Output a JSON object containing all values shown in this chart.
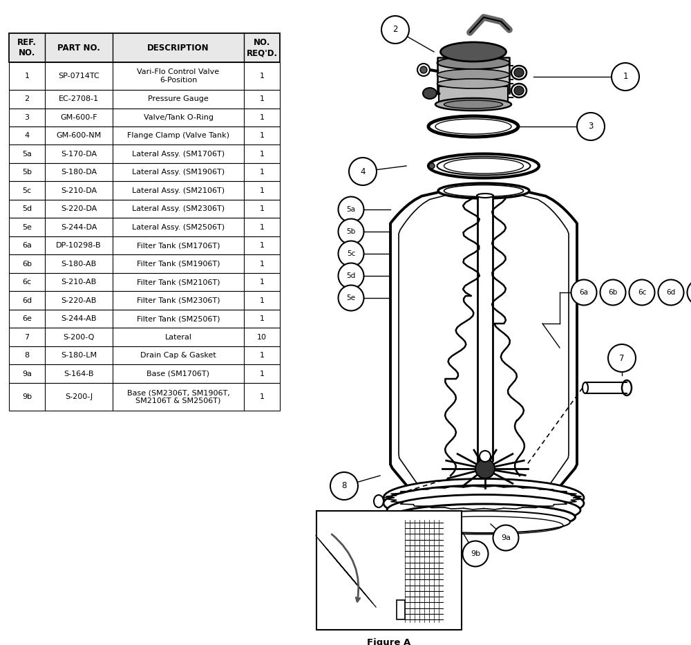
{
  "bg_color": "#ffffff",
  "line_color": "#000000",
  "text_color": "#000000",
  "table_headers": [
    "REF.\nNO.",
    "PART NO.",
    "DESCRIPTION",
    "NO.\nREQ'D."
  ],
  "table_data": [
    [
      "1",
      "SP-0714TC",
      "Vari-Flo Control Valve\n6-Position",
      "1"
    ],
    [
      "2",
      "EC-2708-1",
      "Pressure Gauge",
      "1"
    ],
    [
      "3",
      "GM-600-F",
      "Valve/Tank O-Ring",
      "1"
    ],
    [
      "4",
      "GM-600-NM",
      "Flange Clamp (Valve Tank)",
      "1"
    ],
    [
      "5a",
      "S-170-DA",
      "Lateral Assy. (SM1706T)",
      "1"
    ],
    [
      "5b",
      "S-180-DA",
      "Lateral Assy. (SM1906T)",
      "1"
    ],
    [
      "5c",
      "S-210-DA",
      "Lateral Assy. (SM2106T)",
      "1"
    ],
    [
      "5d",
      "S-220-DA",
      "Lateral Assy. (SM2306T)",
      "1"
    ],
    [
      "5e",
      "S-244-DA",
      "Lateral Assy. (SM2506T)",
      "1"
    ],
    [
      "6a",
      "DP-10298-B",
      "Filter Tank (SM1706T)",
      "1"
    ],
    [
      "6b",
      "S-180-AB",
      "Filter Tank (SM1906T)",
      "1"
    ],
    [
      "6c",
      "S-210-AB",
      "Filter Tank (SM2106T)",
      "1"
    ],
    [
      "6d",
      "S-220-AB",
      "Filter Tank (SM2306T)",
      "1"
    ],
    [
      "6e",
      "S-244-AB",
      "Filter Tank (SM2506T)",
      "1"
    ],
    [
      "7",
      "S-200-Q",
      "Lateral",
      "10"
    ],
    [
      "8",
      "S-180-LM",
      "Drain Cap & Gasket",
      "1"
    ],
    [
      "9a",
      "S-164-B",
      "Base (SM1706T)",
      "1"
    ],
    [
      "9b",
      "S-200-J",
      "Base (SM2306T, SM1906T,\nSM2106T & SM2506T)",
      "1"
    ]
  ],
  "figure_a_label": "Figure A",
  "label_font_size": 8.0,
  "header_font_size": 8.5
}
